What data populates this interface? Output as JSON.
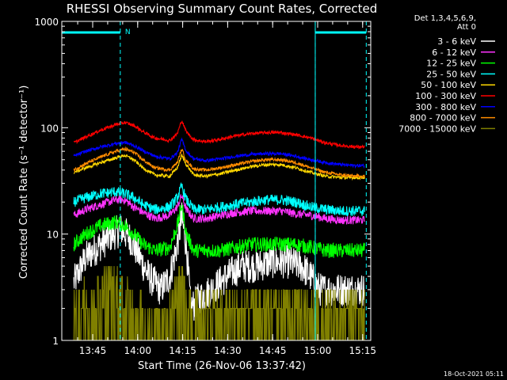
{
  "chart_data": {
    "type": "line",
    "title": "RHESSI Observing Summary Count Rates, Corrected",
    "ylabel": "Corrected Count Rate (s⁻¹ detector⁻¹)",
    "xlabel": "Start Time (26-Nov-06 13:37:42)",
    "y_scale": "log",
    "ylim": [
      1,
      1000
    ],
    "y_ticks": [
      {
        "v": 1,
        "label": "1"
      },
      {
        "v": 10,
        "label": "10"
      },
      {
        "v": 100,
        "label": "100"
      },
      {
        "v": 1000,
        "label": "1000"
      }
    ],
    "xlim_min": [
      -3,
      100
    ],
    "x_ticks": [
      {
        "m": 7.3,
        "label": "13:45"
      },
      {
        "m": 22.3,
        "label": "14:00"
      },
      {
        "m": 37.3,
        "label": "14:15"
      },
      {
        "m": 52.3,
        "label": "14:30"
      },
      {
        "m": 67.3,
        "label": "14:45"
      },
      {
        "m": 82.3,
        "label": "15:00"
      },
      {
        "m": 97.3,
        "label": "15:15"
      }
    ],
    "legend_header": [
      "Det 1,3,4,5,6,9,",
      "Att 0"
    ],
    "night_intervals_min": [
      [
        -3,
        16.5
      ],
      [
        81.5,
        98.5
      ]
    ],
    "night_label": "N",
    "dashed_lines_min": [
      16.5,
      81.5,
      98.5
    ],
    "series": [
      {
        "name": "3 - 6 keV",
        "color": "#ffffff",
        "points": [
          [
            1,
            3.5
          ],
          [
            5,
            6
          ],
          [
            10,
            8
          ],
          [
            14,
            10
          ],
          [
            17,
            11
          ],
          [
            20,
            9
          ],
          [
            23,
            6
          ],
          [
            26,
            4
          ],
          [
            30,
            3
          ],
          [
            33,
            4
          ],
          [
            35.5,
            8
          ],
          [
            37,
            14
          ],
          [
            38.5,
            8
          ],
          [
            40,
            2
          ],
          [
            43,
            2.5
          ],
          [
            47,
            3
          ],
          [
            52,
            4
          ],
          [
            57,
            5
          ],
          [
            62,
            5
          ],
          [
            67,
            5.5
          ],
          [
            72,
            5.5
          ],
          [
            77,
            5
          ],
          [
            80,
            4
          ],
          [
            83,
            3
          ],
          [
            88,
            3
          ],
          [
            93,
            3
          ],
          [
            98,
            3
          ]
        ],
        "noise": 0.16
      },
      {
        "name": "6 - 12 keV",
        "color": "#ff33ff",
        "points": [
          [
            1,
            15
          ],
          [
            5,
            17
          ],
          [
            10,
            19
          ],
          [
            15,
            21
          ],
          [
            18,
            21
          ],
          [
            21,
            18
          ],
          [
            24,
            16
          ],
          [
            28,
            14
          ],
          [
            33,
            15
          ],
          [
            35.5,
            18
          ],
          [
            37,
            23
          ],
          [
            38.5,
            17
          ],
          [
            41,
            14
          ],
          [
            45,
            14
          ],
          [
            50,
            15
          ],
          [
            55,
            16
          ],
          [
            60,
            16.5
          ],
          [
            65,
            16.5
          ],
          [
            70,
            16.5
          ],
          [
            75,
            15.5
          ],
          [
            80,
            15
          ],
          [
            85,
            14
          ],
          [
            90,
            13.5
          ],
          [
            95,
            13.5
          ],
          [
            98,
            13.5
          ]
        ],
        "noise": 0.04
      },
      {
        "name": "12 - 25 keV",
        "color": "#00ff00",
        "points": [
          [
            1,
            8
          ],
          [
            5,
            10
          ],
          [
            10,
            12
          ],
          [
            15,
            13
          ],
          [
            18,
            12
          ],
          [
            21,
            10
          ],
          [
            24,
            8
          ],
          [
            28,
            7
          ],
          [
            33,
            7.5
          ],
          [
            35.5,
            12
          ],
          [
            37,
            19
          ],
          [
            38.5,
            10
          ],
          [
            41,
            7
          ],
          [
            45,
            7
          ],
          [
            50,
            7
          ],
          [
            55,
            7.5
          ],
          [
            60,
            8
          ],
          [
            65,
            8
          ],
          [
            70,
            8
          ],
          [
            75,
            8
          ],
          [
            80,
            7.5
          ],
          [
            85,
            7
          ],
          [
            90,
            7
          ],
          [
            95,
            7
          ],
          [
            98,
            7
          ]
        ],
        "noise": 0.07
      },
      {
        "name": "25 - 50 keV",
        "color": "#00ffff",
        "points": [
          [
            1,
            20
          ],
          [
            5,
            22
          ],
          [
            10,
            24
          ],
          [
            15,
            25
          ],
          [
            18,
            24
          ],
          [
            21,
            22
          ],
          [
            24,
            19
          ],
          [
            28,
            17
          ],
          [
            33,
            18
          ],
          [
            35.5,
            22
          ],
          [
            37,
            28
          ],
          [
            38.5,
            21
          ],
          [
            41,
            17
          ],
          [
            45,
            17
          ],
          [
            50,
            18
          ],
          [
            55,
            19
          ],
          [
            60,
            20
          ],
          [
            65,
            21
          ],
          [
            70,
            21
          ],
          [
            75,
            20
          ],
          [
            80,
            18
          ],
          [
            85,
            17
          ],
          [
            90,
            16.5
          ],
          [
            95,
            16.5
          ],
          [
            98,
            16.5
          ]
        ],
        "noise": 0.05
      },
      {
        "name": "50 - 100 keV",
        "color": "#ffd700",
        "points": [
          [
            1,
            38
          ],
          [
            5,
            42
          ],
          [
            10,
            47
          ],
          [
            15,
            52
          ],
          [
            18,
            55
          ],
          [
            21,
            50
          ],
          [
            24,
            42
          ],
          [
            28,
            36
          ],
          [
            33,
            35
          ],
          [
            35.5,
            42
          ],
          [
            37,
            55
          ],
          [
            38.5,
            45
          ],
          [
            41,
            36
          ],
          [
            45,
            35
          ],
          [
            50,
            37
          ],
          [
            55,
            40
          ],
          [
            60,
            43
          ],
          [
            65,
            45
          ],
          [
            70,
            45
          ],
          [
            75,
            42
          ],
          [
            80,
            38
          ],
          [
            85,
            35
          ],
          [
            90,
            34
          ],
          [
            95,
            34
          ],
          [
            98,
            34
          ]
        ],
        "noise": 0.015
      },
      {
        "name": "100 - 300 keV",
        "color": "#ff0000",
        "points": [
          [
            1,
            72
          ],
          [
            5,
            82
          ],
          [
            10,
            95
          ],
          [
            15,
            107
          ],
          [
            18,
            112
          ],
          [
            21,
            105
          ],
          [
            24,
            92
          ],
          [
            28,
            80
          ],
          [
            33,
            76
          ],
          [
            35.5,
            88
          ],
          [
            37,
            117
          ],
          [
            38.5,
            92
          ],
          [
            41,
            77
          ],
          [
            45,
            74
          ],
          [
            50,
            78
          ],
          [
            55,
            84
          ],
          [
            60,
            88
          ],
          [
            65,
            90
          ],
          [
            70,
            90
          ],
          [
            75,
            86
          ],
          [
            80,
            80
          ],
          [
            85,
            72
          ],
          [
            90,
            68
          ],
          [
            95,
            66
          ],
          [
            98,
            66
          ]
        ],
        "noise": 0.015
      },
      {
        "name": "300 - 800 keV",
        "color": "#0000ff",
        "points": [
          [
            1,
            54
          ],
          [
            5,
            60
          ],
          [
            10,
            66
          ],
          [
            15,
            71
          ],
          [
            18,
            73
          ],
          [
            21,
            68
          ],
          [
            24,
            61
          ],
          [
            28,
            54
          ],
          [
            33,
            51
          ],
          [
            35.5,
            58
          ],
          [
            37,
            78
          ],
          [
            38.5,
            60
          ],
          [
            41,
            51
          ],
          [
            45,
            49
          ],
          [
            50,
            51
          ],
          [
            55,
            54
          ],
          [
            60,
            56
          ],
          [
            65,
            57
          ],
          [
            70,
            57
          ],
          [
            75,
            54
          ],
          [
            80,
            50
          ],
          [
            85,
            47
          ],
          [
            90,
            45
          ],
          [
            95,
            44
          ],
          [
            98,
            44
          ]
        ],
        "noise": 0.015
      },
      {
        "name": "800 - 7000 keV",
        "color": "#ff8c00",
        "points": [
          [
            1,
            40
          ],
          [
            5,
            46
          ],
          [
            10,
            53
          ],
          [
            15,
            60
          ],
          [
            18,
            63
          ],
          [
            21,
            59
          ],
          [
            24,
            50
          ],
          [
            28,
            42
          ],
          [
            33,
            40
          ],
          [
            35.5,
            47
          ],
          [
            37,
            63
          ],
          [
            38.5,
            49
          ],
          [
            41,
            41
          ],
          [
            45,
            40
          ],
          [
            50,
            42
          ],
          [
            55,
            45
          ],
          [
            60,
            48
          ],
          [
            65,
            50
          ],
          [
            70,
            50
          ],
          [
            75,
            47
          ],
          [
            80,
            42
          ],
          [
            85,
            38
          ],
          [
            90,
            36
          ],
          [
            95,
            35
          ],
          [
            98,
            35
          ]
        ],
        "noise": 0.015
      },
      {
        "name": "7000 - 15000 keV",
        "color": "#808000",
        "points": [
          [
            1,
            2
          ],
          [
            5,
            2.5
          ],
          [
            10,
            3
          ],
          [
            14,
            3.5
          ],
          [
            18,
            3
          ],
          [
            22,
            2
          ],
          [
            26,
            1.5
          ],
          [
            30,
            1.5
          ],
          [
            33,
            2
          ],
          [
            35.5,
            3
          ],
          [
            37,
            3.5
          ],
          [
            39,
            2
          ],
          [
            42,
            2
          ],
          [
            46,
            2
          ],
          [
            50,
            2
          ],
          [
            55,
            2
          ],
          [
            60,
            2.2
          ],
          [
            65,
            2.2
          ],
          [
            70,
            2.3
          ],
          [
            75,
            2.3
          ],
          [
            80,
            2
          ],
          [
            85,
            2
          ],
          [
            90,
            2
          ],
          [
            95,
            2
          ],
          [
            98,
            2
          ]
        ],
        "noise": 0.2
      }
    ]
  },
  "footer_timestamp": "18-Oct-2021 05:11"
}
